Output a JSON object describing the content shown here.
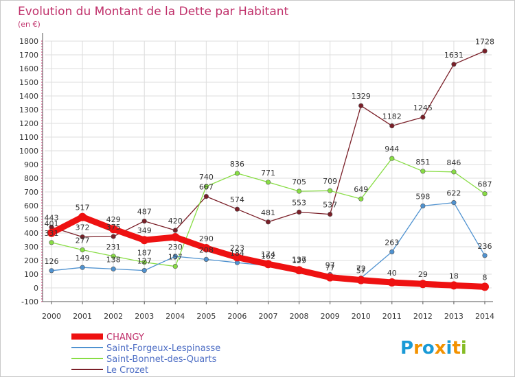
{
  "chart_data": {
    "type": "line",
    "title": "Evolution du Montant de la Dette par Habitant",
    "subtitle": "(en €)",
    "x": [
      "2000",
      "2001",
      "2002",
      "2003",
      "2004",
      "2005",
      "2006",
      "2007",
      "2008",
      "2009",
      "2010",
      "2011",
      "2012",
      "2013",
      "2014"
    ],
    "yticks": [
      -100,
      0,
      100,
      200,
      300,
      400,
      500,
      600,
      700,
      800,
      900,
      1000,
      1100,
      1200,
      1300,
      1400,
      1500,
      1600,
      1700,
      1800
    ],
    "ylim": [
      -100,
      1800
    ],
    "grid": true,
    "legend_position": "bottom-left",
    "series": [
      {
        "name": "CHANGY",
        "color": "#ee1111",
        "values": [
          401,
          517,
          429,
          349,
          370,
          290,
          223,
          174,
          129,
          77,
          57,
          40,
          29,
          18,
          8
        ],
        "labels": [
          "401",
          "517",
          "429",
          "349",
          "",
          "290",
          "223",
          "174",
          "129",
          "77",
          "57",
          "40",
          "29",
          "18",
          "8"
        ]
      },
      {
        "name": "Saint-Forgeux-Lespinasse",
        "color": "#4f92d0",
        "values": [
          126,
          149,
          138,
          127,
          230,
          208,
          184,
          162,
          137,
          97,
          72,
          263,
          598,
          622,
          236
        ],
        "labels": [
          "126",
          "149",
          "138",
          "127",
          "230",
          "208",
          "184",
          "162",
          "137",
          "97",
          "72",
          "263",
          "598",
          "622",
          "236"
        ]
      },
      {
        "name": "Saint-Bonnet-des-Quarts",
        "color": "#88dd44",
        "values": [
          331,
          277,
          231,
          187,
          157,
          740,
          836,
          771,
          705,
          709,
          649,
          944,
          851,
          846,
          687
        ],
        "labels": [
          "331",
          "277",
          "231",
          "187",
          "157",
          "740",
          "836",
          "771",
          "705",
          "709",
          "649",
          "944",
          "851",
          "846",
          "687"
        ]
      },
      {
        "name": "Le Crozet",
        "color": "#7a1f28",
        "values": [
          443,
          372,
          375,
          487,
          420,
          667,
          574,
          481,
          553,
          537,
          1329,
          1182,
          1245,
          1631,
          1728
        ],
        "labels": [
          "443",
          "372",
          "375",
          "487",
          "420",
          "667",
          "574",
          "481",
          "553",
          "537",
          "1329",
          "1182",
          "1245",
          "1631",
          "1728"
        ]
      }
    ]
  },
  "logo": {
    "letters": [
      "P",
      "r",
      "o",
      "x",
      "i",
      "t",
      "i"
    ],
    "colors": [
      "#1a9ad6",
      "#f39200",
      "#1a9ad6",
      "#f39200",
      "#1a9ad6",
      "#f39200",
      "#86bc25"
    ]
  }
}
